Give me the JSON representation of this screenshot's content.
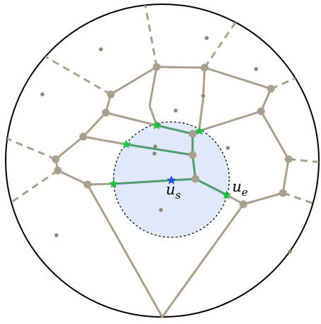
{
  "labels": {
    "start_base": "u",
    "start_sub": "s",
    "end_base": "u",
    "end_sub": "e"
  },
  "colors": {
    "outer_circle": "#000000",
    "region_fill": "#e0e8fa",
    "region_stroke": "#000000",
    "edge": "#a89f8e",
    "vertex": "#a89f8e",
    "site": "#8e877a",
    "path": "#4f9a6f",
    "star_green": "#22c040",
    "star_blue": "#1f4fe0"
  },
  "icons": {
    "path_marker": "star-icon"
  }
}
